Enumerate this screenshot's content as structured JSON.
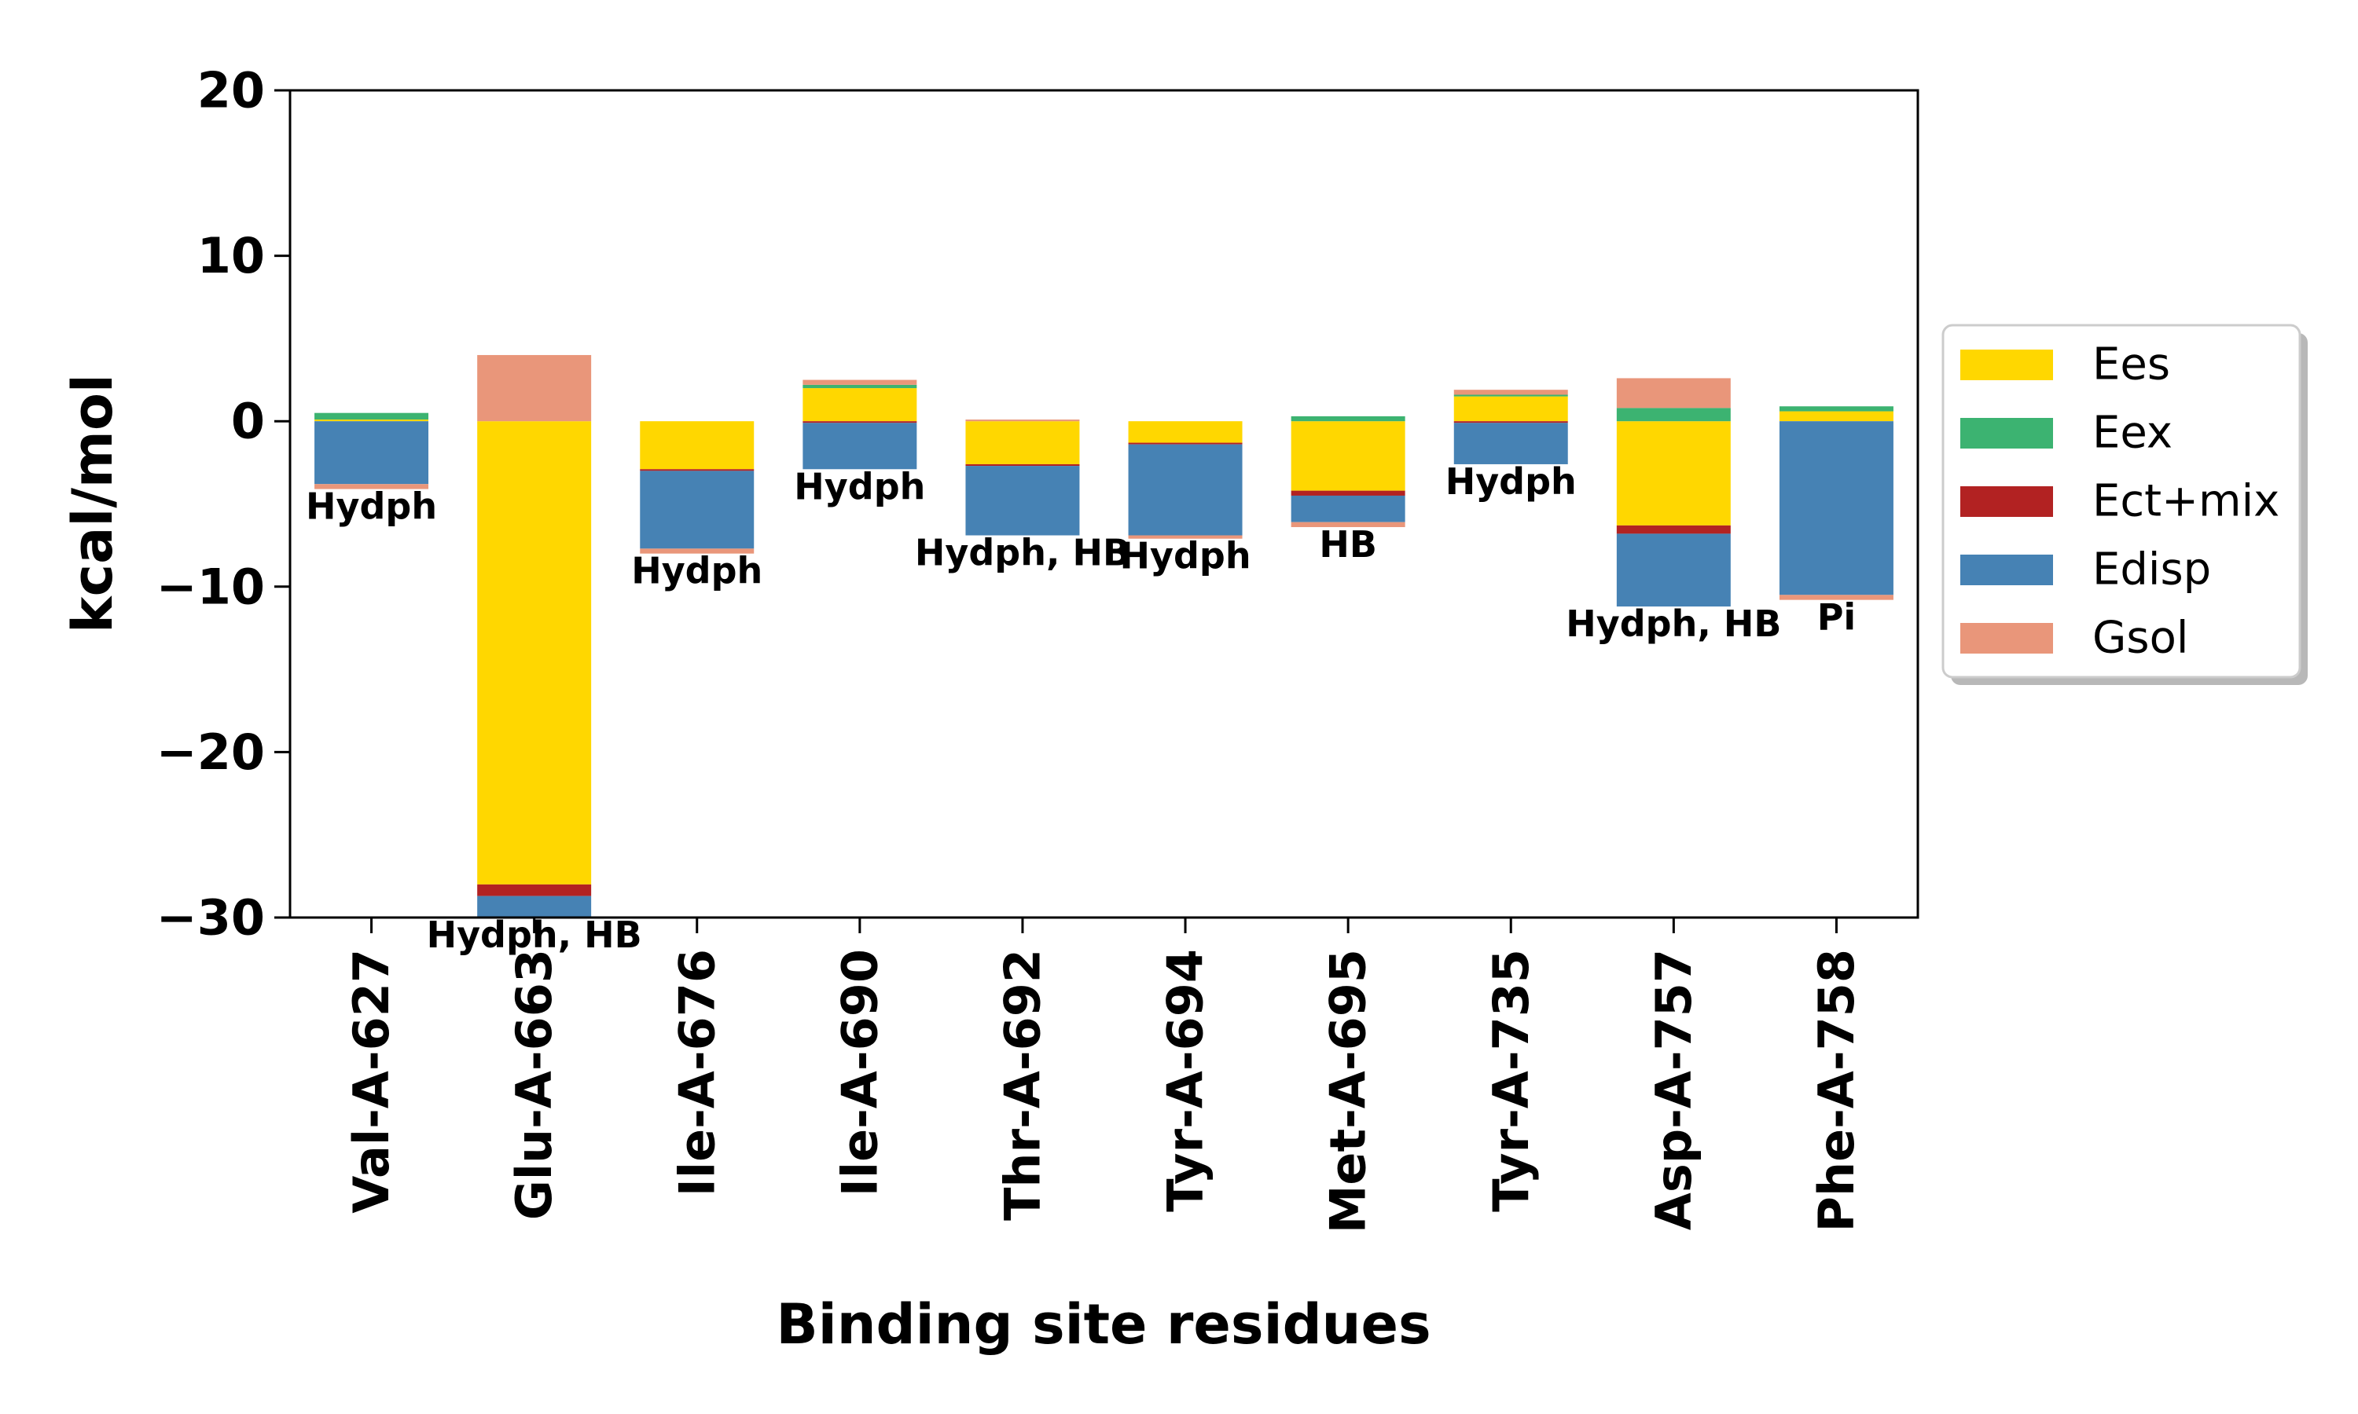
{
  "chart_data": {
    "type": "bar",
    "stacked": true,
    "xlabel": "Binding site residues",
    "ylabel": "kcal/mol",
    "ylim": [
      -30,
      20
    ],
    "yticks": [
      20,
      10,
      0,
      -10,
      -20,
      -30
    ],
    "ytick_labels": [
      "20",
      "10",
      "0",
      "−10",
      "−20",
      "−30"
    ],
    "grid": false,
    "legend_position": "right",
    "categories": [
      "Val-A-627",
      "Glu-A-663",
      "Ile-A-676",
      "Ile-A-690",
      "Thr-A-692",
      "Tyr-A-694",
      "Met-A-695",
      "Tyr-A-735",
      "Asp-A-757",
      "Phe-A-758"
    ],
    "annotations": [
      "Hydph",
      "Hydph, HB",
      "Hydph",
      "Hydph",
      "Hydph, HB",
      "Hydph",
      "HB",
      "Hydph",
      "Hydph, HB",
      "Pi"
    ],
    "series": [
      {
        "name": "Ees",
        "color": "#FFD700",
        "values": [
          0.1,
          -28.0,
          -2.9,
          2.0,
          -2.6,
          -1.3,
          -4.2,
          1.5,
          -6.3,
          0.6
        ]
      },
      {
        "name": "Eex",
        "color": "#3CB371",
        "values": [
          0.4,
          0.0,
          0.0,
          0.2,
          0.0,
          0.0,
          0.3,
          0.1,
          0.8,
          0.3
        ]
      },
      {
        "name": "Ect+mix",
        "color": "#B22222",
        "values": [
          0.0,
          -0.7,
          -0.1,
          -0.1,
          -0.1,
          -0.1,
          -0.3,
          -0.1,
          -0.5,
          0.0
        ]
      },
      {
        "name": "Edisp",
        "color": "#4682B4",
        "values": [
          -3.8,
          -1.3,
          -4.7,
          -2.8,
          -4.2,
          -5.5,
          -1.6,
          -2.5,
          -4.4,
          -10.5
        ]
      },
      {
        "name": "Gsol",
        "color": "#E9967A",
        "values": [
          -0.3,
          4.0,
          -0.3,
          0.3,
          0.1,
          -0.2,
          -0.3,
          0.3,
          1.8,
          -0.3
        ]
      }
    ]
  }
}
